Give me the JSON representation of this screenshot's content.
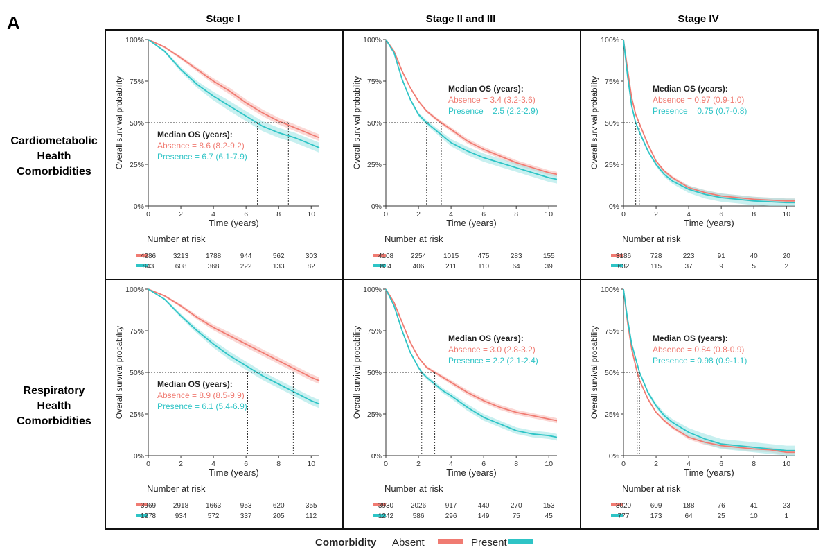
{
  "panel_label": "A",
  "columns": [
    "Stage I",
    "Stage II and III",
    "Stage IV"
  ],
  "rows": [
    {
      "label_lines": [
        "Cardiometabolic",
        "Health",
        "Comorbidities"
      ]
    },
    {
      "label_lines": [
        "Respiratory",
        "Health",
        "Comorbidities"
      ]
    }
  ],
  "legend": {
    "title": "Comorbidity",
    "items": [
      {
        "label": "Absent",
        "color": "#F07B72"
      },
      {
        "label": "Present",
        "color": "#2EC4C6"
      }
    ]
  },
  "colors": {
    "absent": "#F07B72",
    "present": "#2EC4C6",
    "absent_band": "#F8B8B3",
    "present_band": "#9BE3E3"
  },
  "chart_data": [
    {
      "type": "line",
      "title": "Cardiometabolic Health Comorbidities - Stage I",
      "xlabel": "Time (years)",
      "ylabel": "Overall survival probability",
      "xlim": [
        0,
        10.5
      ],
      "ylim": [
        0,
        1
      ],
      "x_ticks": [
        "0",
        "2",
        "4",
        "6",
        "8",
        "10"
      ],
      "y_ticks": [
        "0%",
        "25%",
        "50%",
        "75%",
        "100%"
      ],
      "series": [
        {
          "name": "Absent",
          "x": [
            0,
            1,
            2,
            3,
            4,
            5,
            6,
            7,
            8,
            9,
            10,
            10.5
          ],
          "y": [
            1,
            0.955,
            0.89,
            0.82,
            0.75,
            0.69,
            0.62,
            0.56,
            0.51,
            0.47,
            0.43,
            0.41
          ],
          "ci": 0.02
        },
        {
          "name": "Present",
          "x": [
            0,
            1,
            2,
            3,
            4,
            5,
            6,
            7,
            8,
            9,
            10,
            10.5
          ],
          "y": [
            1,
            0.93,
            0.82,
            0.73,
            0.66,
            0.6,
            0.54,
            0.48,
            0.44,
            0.41,
            0.37,
            0.35
          ],
          "ci": 0.03
        }
      ],
      "median_lines": [
        6.7,
        8.6
      ],
      "annotation": {
        "title": "Median OS (years):",
        "absence": "Absence = 8.6 (8.2-9.2)",
        "presence": "Presence = 6.7 (6.1-7.9)",
        "pos": "lower-left"
      },
      "risk": {
        "title": "Number at risk",
        "absent": [
          "4286",
          "3213",
          "1788",
          "944",
          "562",
          "303"
        ],
        "present": [
          "843",
          "608",
          "368",
          "222",
          "133",
          "82"
        ]
      }
    },
    {
      "type": "line",
      "title": "Cardiometabolic Health Comorbidities - Stage II and III",
      "xlabel": "Time (years)",
      "ylabel": "Overall survival probability",
      "xlim": [
        0,
        10.5
      ],
      "ylim": [
        0,
        1
      ],
      "x_ticks": [
        "0",
        "2",
        "4",
        "6",
        "8",
        "10"
      ],
      "y_ticks": [
        "0%",
        "25%",
        "50%",
        "75%",
        "100%"
      ],
      "series": [
        {
          "name": "Absent",
          "x": [
            0,
            0.5,
            1,
            1.5,
            2,
            2.5,
            3,
            3.4,
            4,
            5,
            6,
            7,
            8,
            9,
            10,
            10.5
          ],
          "y": [
            1,
            0.93,
            0.81,
            0.71,
            0.63,
            0.57,
            0.53,
            0.5,
            0.46,
            0.39,
            0.34,
            0.3,
            0.26,
            0.23,
            0.2,
            0.19
          ],
          "ci": 0.015
        },
        {
          "name": "Present",
          "x": [
            0,
            0.5,
            1,
            1.5,
            2,
            2.5,
            3,
            3.5,
            4,
            5,
            6,
            7,
            8,
            9,
            10,
            10.5
          ],
          "y": [
            1,
            0.92,
            0.76,
            0.64,
            0.55,
            0.5,
            0.46,
            0.42,
            0.38,
            0.33,
            0.29,
            0.26,
            0.23,
            0.2,
            0.17,
            0.16
          ],
          "ci": 0.025
        },
        {
          "name": "_",
          "x": [],
          "y": []
        }
      ],
      "median_lines": [
        2.5,
        3.4
      ],
      "annotation": {
        "title": "Median OS (years):",
        "absence": "Absence = 3.4 (3.2-3.6)",
        "presence": "Presence = 2.5 (2.2-2.9)",
        "pos": "upper-right"
      },
      "risk": {
        "title": "Number at risk",
        "absent": [
          "4108",
          "2254",
          "1015",
          "475",
          "283",
          "155"
        ],
        "present": [
          "834",
          "406",
          "211",
          "110",
          "64",
          "39"
        ]
      }
    },
    {
      "type": "line",
      "title": "Cardiometabolic Health Comorbidities - Stage IV",
      "xlabel": "Time (years)",
      "ylabel": "Overall survival probability",
      "xlim": [
        0,
        10.5
      ],
      "ylim": [
        0,
        1
      ],
      "x_ticks": [
        "0",
        "2",
        "4",
        "6",
        "8",
        "10"
      ],
      "y_ticks": [
        "0%",
        "25%",
        "50%",
        "75%",
        "100%"
      ],
      "series": [
        {
          "name": "Absent",
          "x": [
            0,
            0.25,
            0.5,
            0.75,
            1,
            1.5,
            2,
            2.5,
            3,
            4,
            5,
            6,
            7,
            8,
            9,
            10,
            10.5
          ],
          "y": [
            1,
            0.82,
            0.65,
            0.55,
            0.49,
            0.37,
            0.27,
            0.21,
            0.17,
            0.11,
            0.08,
            0.06,
            0.05,
            0.04,
            0.035,
            0.03,
            0.03
          ],
          "ci": 0.015
        },
        {
          "name": "Present",
          "x": [
            0,
            0.25,
            0.5,
            0.75,
            1,
            1.5,
            2,
            2.5,
            3,
            4,
            5,
            6,
            7,
            8,
            9,
            10,
            10.5
          ],
          "y": [
            1,
            0.78,
            0.6,
            0.5,
            0.44,
            0.33,
            0.25,
            0.19,
            0.15,
            0.1,
            0.07,
            0.05,
            0.04,
            0.03,
            0.025,
            0.02,
            0.02
          ],
          "ci": 0.025
        }
      ],
      "median_lines": [
        0.75,
        0.97
      ],
      "annotation": {
        "title": "Median OS (years):",
        "absence": "Absence = 0.97 (0.9-1.0)",
        "presence": "Presence = 0.75 (0.7-0.8)",
        "pos": "upper-right"
      },
      "risk": {
        "title": "Number at risk",
        "absent": [
          "3186",
          "728",
          "223",
          "91",
          "40",
          "20"
        ],
        "present": [
          "632",
          "115",
          "37",
          "9",
          "5",
          "2"
        ]
      }
    },
    {
      "type": "line",
      "title": "Respiratory Health Comorbidities - Stage I",
      "xlabel": "Time (years)",
      "ylabel": "Overall survival probability",
      "xlim": [
        0,
        10.5
      ],
      "ylim": [
        0,
        1
      ],
      "x_ticks": [
        "0",
        "2",
        "4",
        "6",
        "8",
        "10"
      ],
      "y_ticks": [
        "0%",
        "25%",
        "50%",
        "75%",
        "100%"
      ],
      "series": [
        {
          "name": "Absent",
          "x": [
            0,
            1,
            2,
            3,
            4,
            5,
            6,
            7,
            8,
            9,
            10,
            10.5
          ],
          "y": [
            1,
            0.96,
            0.9,
            0.83,
            0.77,
            0.72,
            0.67,
            0.62,
            0.57,
            0.52,
            0.47,
            0.45
          ],
          "ci": 0.02
        },
        {
          "name": "Present",
          "x": [
            0,
            1,
            2,
            3,
            4,
            5,
            6,
            7,
            8,
            9,
            10,
            10.5
          ],
          "y": [
            1,
            0.94,
            0.84,
            0.75,
            0.67,
            0.6,
            0.54,
            0.48,
            0.43,
            0.38,
            0.33,
            0.31
          ],
          "ci": 0.025
        }
      ],
      "median_lines": [
        6.1,
        8.9
      ],
      "annotation": {
        "title": "Median OS (years):",
        "absence": "Absence = 8.9 (8.5-9.9)",
        "presence": "Presence = 6.1 (5.4-6.9)",
        "pos": "lower-left"
      },
      "risk": {
        "title": "Number at risk",
        "absent": [
          "3969",
          "2918",
          "1663",
          "953",
          "620",
          "355"
        ],
        "present": [
          "1278",
          "934",
          "572",
          "337",
          "205",
          "112"
        ]
      }
    },
    {
      "type": "line",
      "title": "Respiratory Health Comorbidities - Stage II and III",
      "xlabel": "Time (years)",
      "ylabel": "Overall survival probability",
      "xlim": [
        0,
        10.5
      ],
      "ylim": [
        0,
        1
      ],
      "x_ticks": [
        "0",
        "2",
        "4",
        "6",
        "8",
        "10"
      ],
      "y_ticks": [
        "0%",
        "25%",
        "50%",
        "75%",
        "100%"
      ],
      "series": [
        {
          "name": "Absent",
          "x": [
            0,
            0.5,
            1,
            1.5,
            2,
            2.5,
            3,
            3.5,
            4,
            5,
            6,
            7,
            8,
            9,
            10,
            10.5
          ],
          "y": [
            1,
            0.92,
            0.8,
            0.68,
            0.59,
            0.53,
            0.5,
            0.47,
            0.44,
            0.38,
            0.33,
            0.29,
            0.26,
            0.24,
            0.22,
            0.21
          ],
          "ci": 0.015
        },
        {
          "name": "Present",
          "x": [
            0,
            0.5,
            1,
            1.5,
            2,
            2.2,
            2.5,
            3,
            3.5,
            4,
            5,
            6,
            7,
            8,
            9,
            10,
            10.5
          ],
          "y": [
            1,
            0.9,
            0.75,
            0.62,
            0.53,
            0.5,
            0.47,
            0.43,
            0.39,
            0.36,
            0.29,
            0.23,
            0.19,
            0.15,
            0.13,
            0.12,
            0.11
          ],
          "ci": 0.02
        }
      ],
      "median_lines": [
        2.2,
        3.0
      ],
      "annotation": {
        "title": "Median OS (years):",
        "absence": "Absence = 3.0 (2.8-3.2)",
        "presence": "Presence = 2.2 (2.1-2.4)",
        "pos": "upper-right"
      },
      "risk": {
        "title": "Number at risk",
        "absent": [
          "3930",
          "2026",
          "917",
          "440",
          "270",
          "153"
        ],
        "present": [
          "1242",
          "586",
          "296",
          "149",
          "75",
          "45"
        ]
      }
    },
    {
      "type": "line",
      "title": "Respiratory Health Comorbidities - Stage IV",
      "xlabel": "Time (years)",
      "ylabel": "Overall survival probability",
      "xlim": [
        0,
        10.5
      ],
      "ylim": [
        0,
        1
      ],
      "x_ticks": [
        "0",
        "2",
        "4",
        "6",
        "8",
        "10"
      ],
      "y_ticks": [
        "0%",
        "25%",
        "50%",
        "75%",
        "100%"
      ],
      "series": [
        {
          "name": "Absent",
          "x": [
            0,
            0.25,
            0.5,
            0.84,
            1,
            1.5,
            2,
            2.5,
            3,
            4,
            5,
            6,
            7,
            8,
            9,
            10,
            10.5
          ],
          "y": [
            1,
            0.8,
            0.64,
            0.5,
            0.45,
            0.34,
            0.26,
            0.21,
            0.17,
            0.11,
            0.08,
            0.06,
            0.05,
            0.04,
            0.035,
            0.02,
            0.02
          ],
          "ci": 0.015
        },
        {
          "name": "Present",
          "x": [
            0,
            0.25,
            0.5,
            0.98,
            1.5,
            2,
            2.5,
            3,
            4,
            5,
            6,
            7,
            8,
            9,
            10,
            10.5
          ],
          "y": [
            1,
            0.82,
            0.67,
            0.5,
            0.38,
            0.3,
            0.24,
            0.2,
            0.14,
            0.1,
            0.07,
            0.06,
            0.05,
            0.04,
            0.03,
            0.03
          ],
          "ci": 0.03
        }
      ],
      "median_lines": [
        0.84,
        0.98
      ],
      "annotation": {
        "title": "Median OS (years):",
        "absence": "Absence = 0.84 (0.8-0.9)",
        "presence": "Presence = 0.98 (0.9-1.1)",
        "pos": "upper-right"
      },
      "risk": {
        "title": "Number at risk",
        "absent": [
          "3020",
          "609",
          "188",
          "76",
          "41",
          "23"
        ],
        "present": [
          "777",
          "173",
          "64",
          "25",
          "10",
          "1"
        ]
      }
    }
  ]
}
